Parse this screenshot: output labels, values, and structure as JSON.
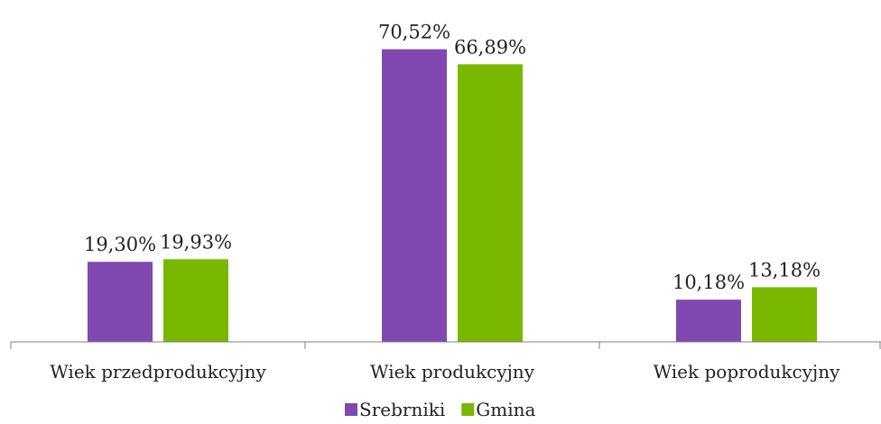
{
  "chart_data": {
    "type": "bar",
    "categories": [
      "Wiek przedprodukcyjny",
      "Wiek produkcyjny",
      "Wiek poprodukcyjny"
    ],
    "series": [
      {
        "name": "Srebrniki",
        "color": "#8048b0",
        "values": [
          19.3,
          70.52,
          10.18
        ],
        "labels": [
          "19,30%",
          "70,52%",
          "10,18%"
        ]
      },
      {
        "name": "Gmina",
        "color": "#7ab800",
        "values": [
          19.93,
          66.89,
          13.18
        ],
        "labels": [
          "19,93%",
          "66,89%",
          "13,18%"
        ]
      }
    ],
    "title": "",
    "xlabel": "",
    "ylabel": "",
    "ylim": [
      0,
      80
    ],
    "grid": false,
    "legend": "bottom-center",
    "axis_color": "#808080"
  }
}
